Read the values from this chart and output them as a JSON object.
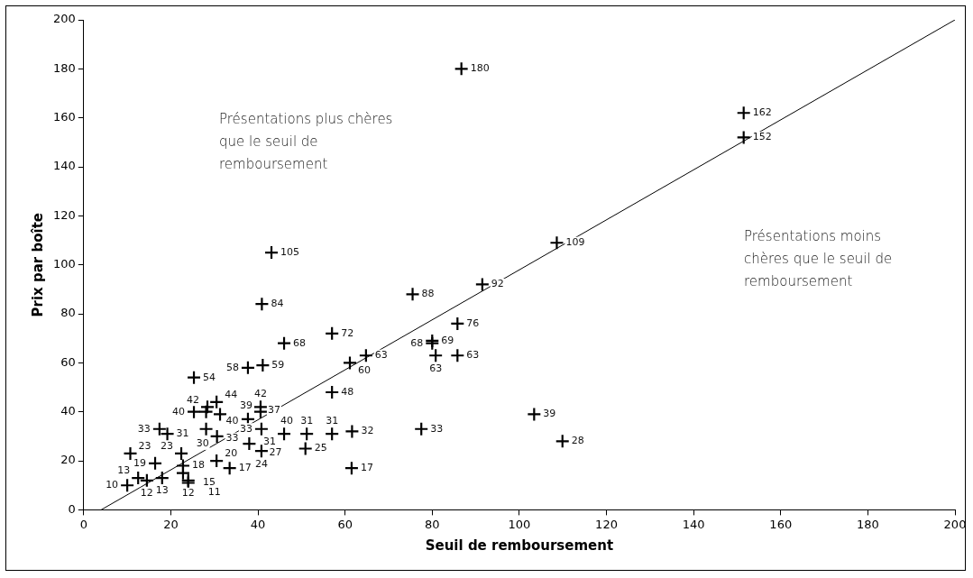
{
  "chart_data": {
    "type": "scatter",
    "xlabel": "Seuil de remboursement",
    "ylabel": "Prix par boîte",
    "annotations": [
      "Présentations plus chères que le seuil de remboursement",
      "Présentations moins chères que le seuil de remboursement"
    ],
    "xlim": [
      0,
      200
    ],
    "xticks": [
      0,
      20,
      40,
      60,
      80,
      100,
      120,
      140,
      160,
      180,
      200
    ],
    "ylim": [
      0,
      200
    ],
    "yticks": [
      0,
      20,
      40,
      60,
      80,
      100,
      120,
      140,
      160,
      180,
      200
    ],
    "grid": false,
    "legend": false,
    "marker": "cross",
    "series": [
      {
        "color": "#000000",
        "value_labels": [
          "180",
          "162",
          "152",
          "109",
          "92",
          "88",
          "105",
          "84",
          "72",
          "68",
          "76",
          "69",
          "68",
          "63",
          "63",
          "63",
          "60",
          "48",
          "33",
          "39",
          "28",
          "17",
          "58",
          "59",
          "54",
          "44",
          "40",
          "40",
          "42",
          "39",
          "37",
          "42",
          "40",
          "33",
          "31",
          "33",
          "30",
          "23",
          "23",
          "19",
          "20",
          "18",
          "15",
          "17",
          "10",
          "13",
          "12",
          "13",
          "12",
          "11",
          "27",
          "24",
          "33",
          "31",
          "31",
          "31",
          "32",
          "25"
        ],
        "x": [
          86.7,
          151.5,
          151.5,
          108.6,
          91.5,
          75.5,
          43.1,
          40.9,
          57,
          46,
          85.8,
          80,
          80,
          80.8,
          85.8,
          64.8,
          61.1,
          57,
          77.5,
          103.4,
          109.9,
          61.5,
          37.7,
          41.1,
          25.3,
          30.5,
          25.3,
          28.1,
          28.4,
          31.3,
          37.7,
          40.6,
          40.6,
          17.4,
          19.2,
          28.1,
          30.6,
          10.7,
          22.4,
          16.4,
          30.5,
          22.8,
          22.8,
          33.5,
          10,
          12.5,
          14.5,
          18,
          24,
          24,
          38,
          40.8,
          40.8,
          46,
          51.2,
          57,
          61.6,
          50.9
        ],
        "values": [
          180,
          162,
          152,
          109,
          92,
          88,
          105,
          84,
          72,
          68,
          76,
          69,
          68,
          63,
          63,
          63,
          60,
          48,
          33,
          39,
          28,
          17,
          58,
          59,
          54,
          44,
          40,
          40,
          42,
          39,
          37,
          42,
          40,
          33,
          31,
          33,
          30,
          23,
          23,
          19,
          20,
          18,
          15,
          17,
          10,
          13,
          12,
          13,
          12,
          11,
          27,
          24,
          33,
          31,
          31,
          31,
          32,
          25
        ]
      },
      {
        "type": "line",
        "marker": "none",
        "color": "#000000",
        "x": [
          4,
          200
        ],
        "values": [
          0,
          200
        ]
      }
    ]
  }
}
